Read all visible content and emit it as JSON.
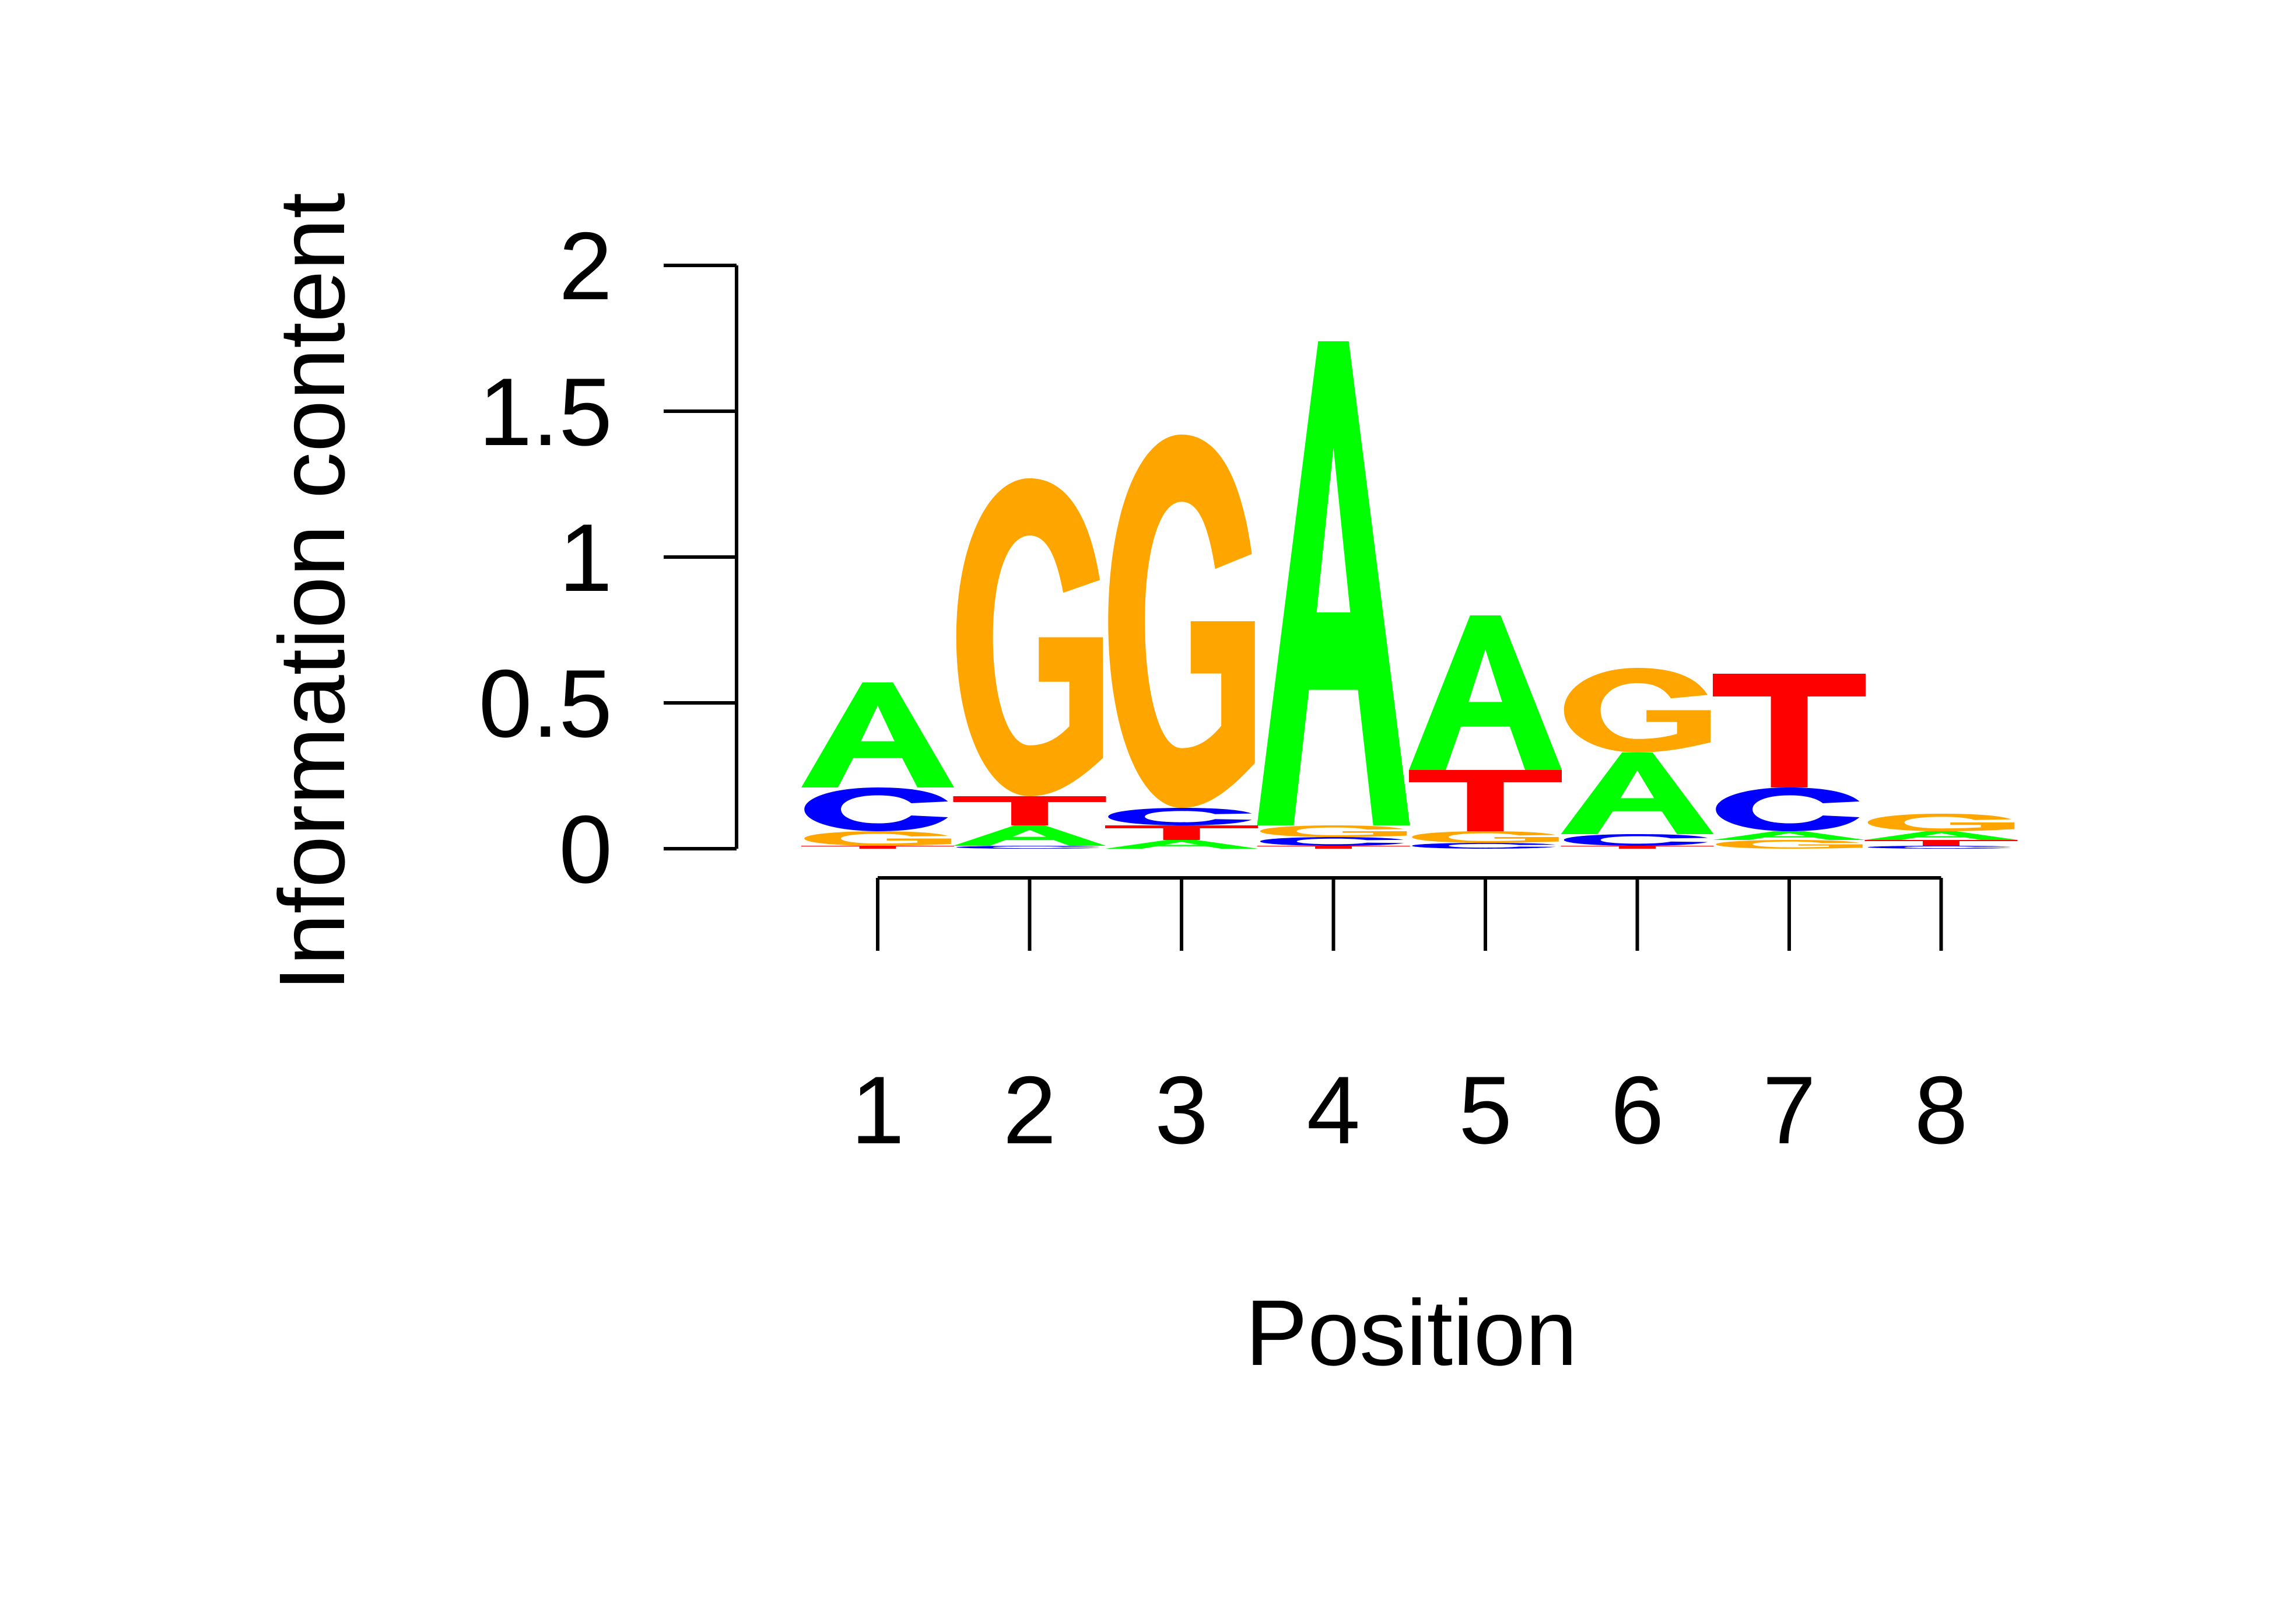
{
  "chart_data": {
    "type": "sequence-logo",
    "xlabel": "Position",
    "ylabel": "Information content",
    "ylim": [
      0,
      2
    ],
    "y_ticks": [
      "0",
      "0.5",
      "1",
      "1.5",
      "2"
    ],
    "x_ticks": [
      "1",
      "2",
      "3",
      "4",
      "5",
      "6",
      "7",
      "8"
    ],
    "grid": false,
    "legend": "none",
    "colors": {
      "A": "#00ff00",
      "C": "#0000ff",
      "G": "#ffa500",
      "T": "#ff0000"
    },
    "positions": [
      {
        "position": "1",
        "stack": [
          {
            "letter": "T",
            "height": 0.01
          },
          {
            "letter": "G",
            "height": 0.05
          },
          {
            "letter": "C",
            "height": 0.15
          },
          {
            "letter": "A",
            "height": 0.36
          }
        ]
      },
      {
        "position": "2",
        "stack": [
          {
            "letter": "C",
            "height": 0.01
          },
          {
            "letter": "A",
            "height": 0.07
          },
          {
            "letter": "T",
            "height": 0.1
          },
          {
            "letter": "G",
            "height": 1.09
          }
        ]
      },
      {
        "position": "3",
        "stack": [
          {
            "letter": "A",
            "height": 0.03
          },
          {
            "letter": "T",
            "height": 0.05
          },
          {
            "letter": "C",
            "height": 0.06
          },
          {
            "letter": "G",
            "height": 1.28
          }
        ]
      },
      {
        "position": "4",
        "stack": [
          {
            "letter": "T",
            "height": 0.01
          },
          {
            "letter": "C",
            "height": 0.03
          },
          {
            "letter": "G",
            "height": 0.04
          },
          {
            "letter": "A",
            "height": 1.66
          }
        ]
      },
      {
        "position": "5",
        "stack": [
          {
            "letter": "C",
            "height": 0.02
          },
          {
            "letter": "G",
            "height": 0.04
          },
          {
            "letter": "T",
            "height": 0.21
          },
          {
            "letter": "A",
            "height": 0.53
          }
        ]
      },
      {
        "position": "6",
        "stack": [
          {
            "letter": "T",
            "height": 0.01
          },
          {
            "letter": "C",
            "height": 0.04
          },
          {
            "letter": "A",
            "height": 0.28
          },
          {
            "letter": "G",
            "height": 0.29
          }
        ]
      },
      {
        "position": "7",
        "stack": [
          {
            "letter": "G",
            "height": 0.03
          },
          {
            "letter": "A",
            "height": 0.03
          },
          {
            "letter": "C",
            "height": 0.15
          },
          {
            "letter": "T",
            "height": 0.39
          }
        ]
      },
      {
        "position": "8",
        "stack": [
          {
            "letter": "C",
            "height": 0.01
          },
          {
            "letter": "T",
            "height": 0.02
          },
          {
            "letter": "A",
            "height": 0.03
          },
          {
            "letter": "G",
            "height": 0.06
          }
        ]
      }
    ]
  }
}
